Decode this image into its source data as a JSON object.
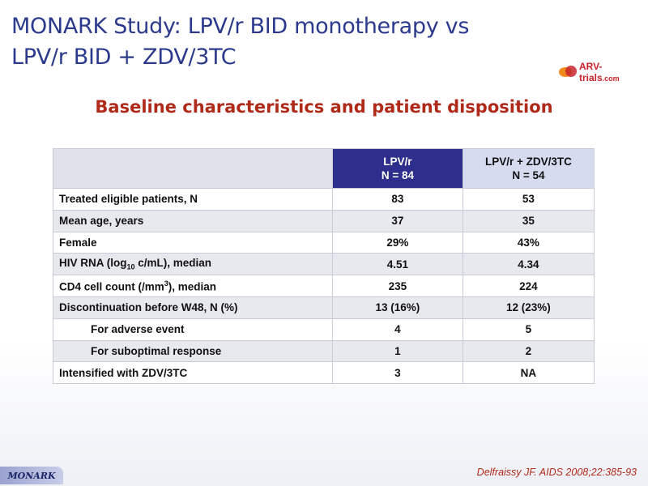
{
  "title": {
    "line1": "MONARK Study: LPV/r BID monotherapy vs",
    "line2": "LPV/r BID + ZDV/3TC"
  },
  "logo": {
    "text_main": "ARV-trials",
    "text_suffix": ".com",
    "icon": "arv-trials-logo-icon"
  },
  "subtitle": "Baseline characteristics and patient disposition",
  "table": {
    "columns": [
      {
        "line1": "LPV/r",
        "line2": "N = 84"
      },
      {
        "line1": "LPV/r + ZDV/3TC",
        "line2": "N = 54"
      }
    ],
    "rows": [
      {
        "label": "Treated eligible patients, N",
        "v1": "83",
        "v2": "53"
      },
      {
        "label": "Mean age, years",
        "v1": "37",
        "v2": "35"
      },
      {
        "label": "Female",
        "v1": "29%",
        "v2": "43%"
      },
      {
        "label_pre": "HIV RNA (log",
        "label_sub": "10",
        "label_post": " c/mL), median",
        "v1": "4.51",
        "v2": "4.34"
      },
      {
        "label_pre": "CD4 cell count (/mm",
        "label_sup": "3",
        "label_post": "), median",
        "v1": "235",
        "v2": "224"
      },
      {
        "label": "Discontinuation before W48, N (%)",
        "v1": "13 (16%)",
        "v2": "12 (23%)"
      },
      {
        "label": "For adverse event",
        "v1": "4",
        "v2": "5"
      },
      {
        "label": "For suboptimal response",
        "v1": "1",
        "v2": "2"
      },
      {
        "label": "Intensified with ZDV/3TC",
        "v1": "3",
        "v2": "NA"
      }
    ]
  },
  "reference": "Delfraissy JF. AIDS 2008;22:385-93",
  "badge": "MONARK",
  "colors": {
    "title": "#2b3a8c",
    "subtitle": "#b02a1a",
    "header_col1": "#2e2f8c",
    "header_col2": "#d7dbf0"
  }
}
